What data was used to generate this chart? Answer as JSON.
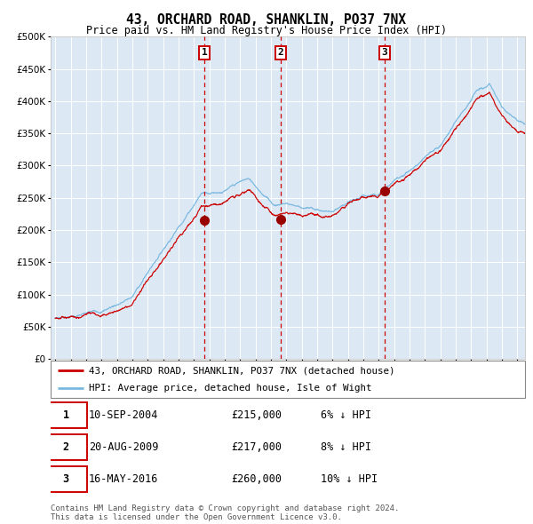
{
  "title": "43, ORCHARD ROAD, SHANKLIN, PO37 7NX",
  "subtitle": "Price paid vs. HM Land Registry's House Price Index (HPI)",
  "background_color": "#dce9f5",
  "hpi_color": "#7ab8e0",
  "price_color": "#cc0000",
  "marker_color": "#990000",
  "vline_color": "#cc0000",
  "grid_color": "#ffffff",
  "ylim": [
    0,
    500000
  ],
  "yticks": [
    0,
    50000,
    100000,
    150000,
    200000,
    250000,
    300000,
    350000,
    400000,
    450000,
    500000
  ],
  "xlim_start": 1994.7,
  "xlim_end": 2025.5,
  "transactions": [
    {
      "date": 2004.69,
      "price": 215000,
      "label": "1"
    },
    {
      "date": 2009.63,
      "price": 217000,
      "label": "2"
    },
    {
      "date": 2016.37,
      "price": 260000,
      "label": "3"
    }
  ],
  "legend_entries": [
    "43, ORCHARD ROAD, SHANKLIN, PO37 7NX (detached house)",
    "HPI: Average price, detached house, Isle of Wight"
  ],
  "table_rows": [
    {
      "num": "1",
      "date": "10-SEP-2004",
      "price": "£215,000",
      "hpi": "6% ↓ HPI"
    },
    {
      "num": "2",
      "date": "20-AUG-2009",
      "price": "£217,000",
      "hpi": "8% ↓ HPI"
    },
    {
      "num": "3",
      "date": "16-MAY-2016",
      "price": "£260,000",
      "hpi": "10% ↓ HPI"
    }
  ],
  "footer": "Contains HM Land Registry data © Crown copyright and database right 2024.\nThis data is licensed under the Open Government Licence v3.0."
}
